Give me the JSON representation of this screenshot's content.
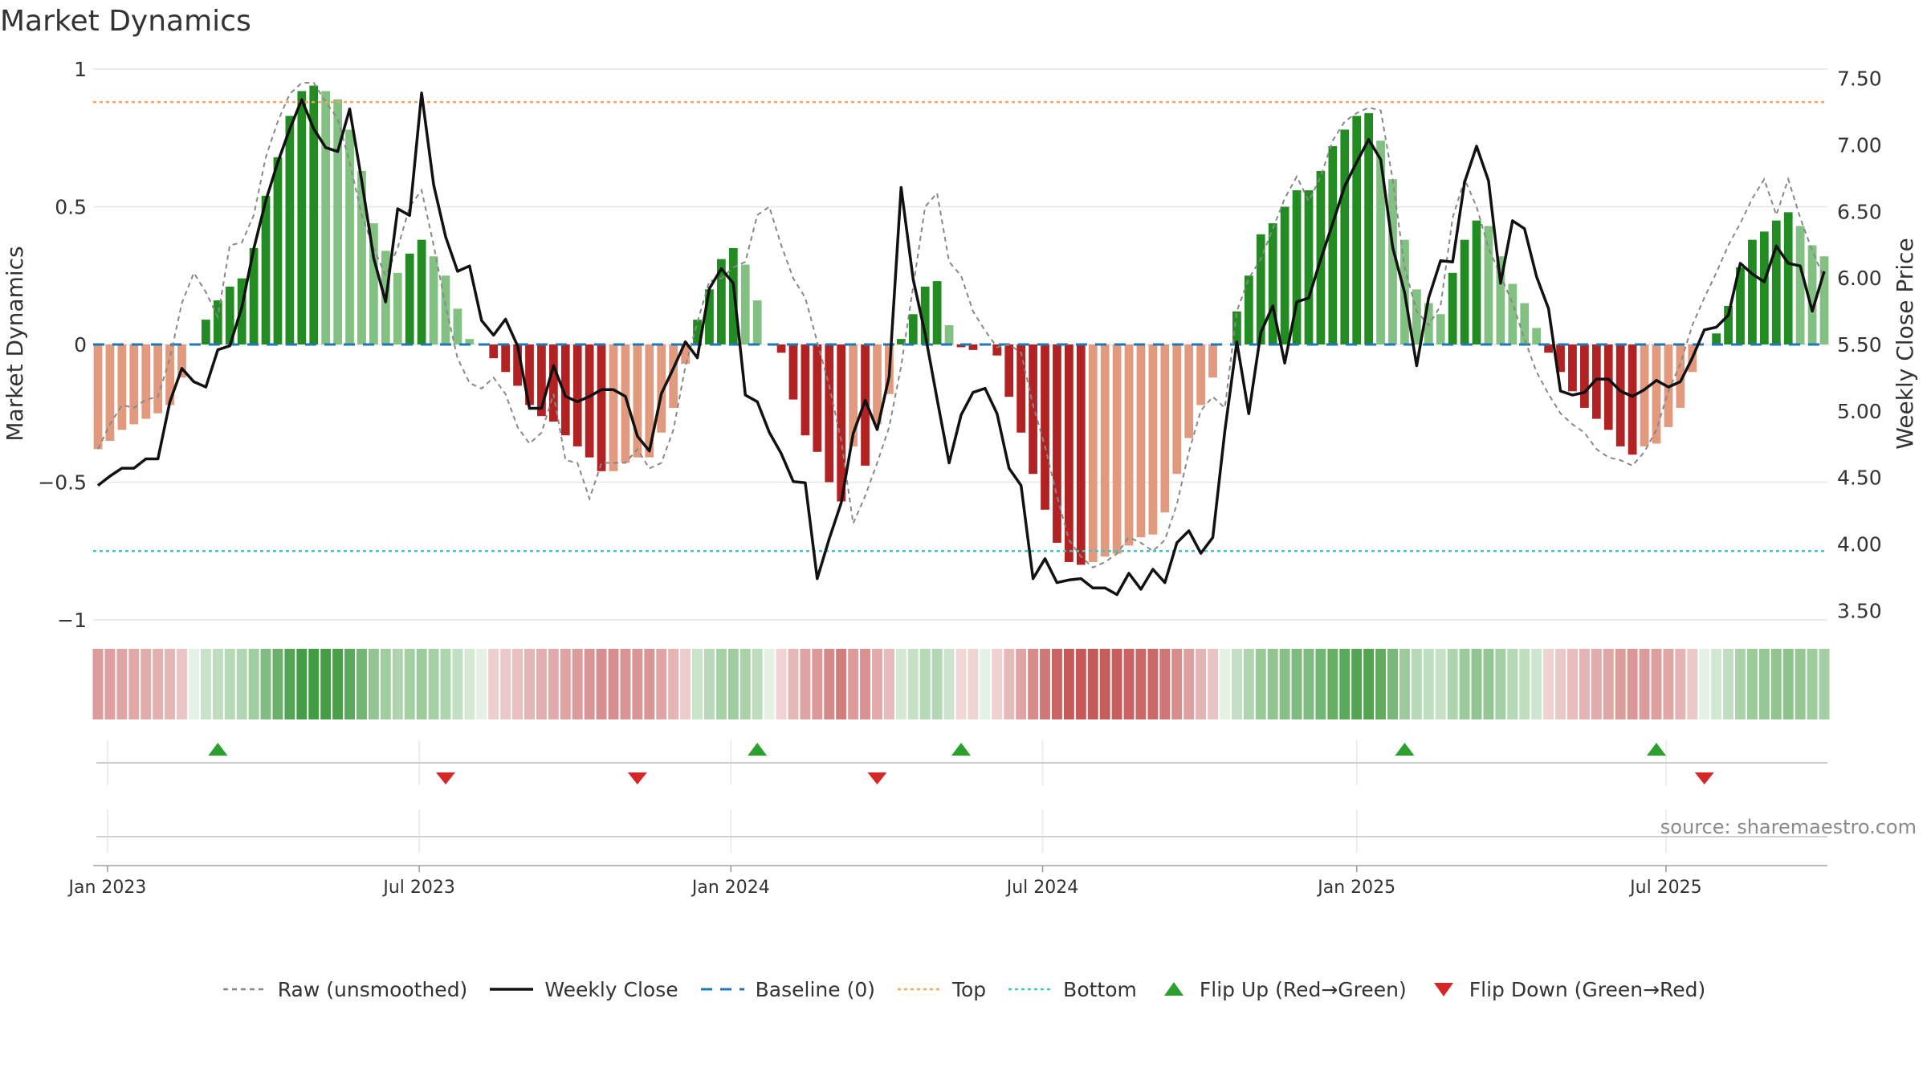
{
  "title": "Market Dynamics",
  "source": "source: sharemaestro.com",
  "chart_data": {
    "type": "bar",
    "y_left_label": "Market Dynamics",
    "y_right_label": "Weekly Close Price",
    "y_left_ticks": [
      "1",
      "0.5",
      "0",
      "−0.5",
      "−1"
    ],
    "y_left_range": [
      -1,
      1
    ],
    "y_right_ticks": [
      "7.50",
      "7.00",
      "6.50",
      "6.00",
      "5.50",
      "5.00",
      "4.50",
      "4.00",
      "3.50"
    ],
    "y_right_range": [
      3.43,
      7.57
    ],
    "x_ticks": [
      "Jan 2023",
      "Jul 2023",
      "Jan 2024",
      "Jul 2024",
      "Jan 2025",
      "Jul 2025"
    ],
    "top_level": 0.88,
    "bottom_level": -0.75,
    "grid": true,
    "dynamics": [
      -0.38,
      -0.35,
      -0.31,
      -0.29,
      -0.27,
      -0.25,
      -0.22,
      -0.12,
      0,
      0.09,
      0.16,
      0.21,
      0.24,
      0.35,
      0.54,
      0.68,
      0.83,
      0.92,
      0.94,
      0.92,
      0.89,
      0.78,
      0.63,
      0.44,
      0.34,
      0.26,
      0.33,
      0.38,
      0.32,
      0.25,
      0.13,
      0.02,
      0,
      -0.05,
      -0.1,
      -0.15,
      -0.22,
      -0.26,
      -0.28,
      -0.33,
      -0.37,
      -0.41,
      -0.46,
      -0.46,
      -0.43,
      -0.41,
      -0.41,
      -0.32,
      -0.23,
      -0.07,
      0.09,
      0.2,
      0.31,
      0.35,
      0.29,
      0.16,
      0,
      -0.03,
      -0.2,
      -0.33,
      -0.39,
      -0.5,
      -0.57,
      -0.37,
      -0.44,
      -0.29,
      -0.18,
      0.02,
      0.11,
      0.21,
      0.23,
      0.07,
      -0.01,
      -0.02,
      0,
      -0.04,
      -0.19,
      -0.32,
      -0.47,
      -0.6,
      -0.72,
      -0.79,
      -0.8,
      -0.79,
      -0.77,
      -0.76,
      -0.73,
      -0.7,
      -0.69,
      -0.61,
      -0.47,
      -0.34,
      -0.22,
      -0.12,
      0,
      0.12,
      0.25,
      0.4,
      0.44,
      0.5,
      0.56,
      0.56,
      0.63,
      0.72,
      0.78,
      0.83,
      0.84,
      0.74,
      0.6,
      0.38,
      0.2,
      0.15,
      0.11,
      0.26,
      0.38,
      0.45,
      0.43,
      0.32,
      0.22,
      0.15,
      0.06,
      -0.03,
      -0.1,
      -0.17,
      -0.23,
      -0.27,
      -0.31,
      -0.37,
      -0.4,
      -0.37,
      -0.36,
      -0.3,
      -0.23,
      -0.1,
      0,
      0.04,
      0.14,
      0.28,
      0.38,
      0.41,
      0.45,
      0.48,
      0.43,
      0.36,
      0.32
    ],
    "raw": [
      -0.38,
      -0.29,
      -0.22,
      -0.23,
      -0.2,
      -0.19,
      -0.05,
      0.15,
      0.26,
      0.19,
      0.1,
      0.36,
      0.37,
      0.47,
      0.68,
      0.81,
      0.91,
      0.95,
      0.95,
      0.88,
      0.82,
      0.66,
      0.47,
      0.35,
      0.25,
      0.35,
      0.5,
      0.56,
      0.36,
      0.14,
      -0.05,
      -0.14,
      -0.16,
      -0.12,
      -0.18,
      -0.3,
      -0.36,
      -0.32,
      -0.18,
      -0.42,
      -0.43,
      -0.56,
      -0.43,
      -0.43,
      -0.43,
      -0.38,
      -0.45,
      -0.43,
      -0.31,
      -0.08,
      0.08,
      0.23,
      0.24,
      0.28,
      0.3,
      0.47,
      0.5,
      0.36,
      0.24,
      0.17,
      0.01,
      -0.15,
      -0.35,
      -0.65,
      -0.55,
      -0.43,
      -0.3,
      -0.08,
      0.21,
      0.5,
      0.55,
      0.3,
      0.25,
      0.12,
      0.05,
      -0.01,
      0,
      -0.03,
      -0.22,
      -0.37,
      -0.55,
      -0.71,
      -0.77,
      -0.81,
      -0.79,
      -0.76,
      -0.7,
      -0.72,
      -0.75,
      -0.71,
      -0.58,
      -0.39,
      -0.24,
      -0.19,
      -0.23,
      0.12,
      0.24,
      0.31,
      0.42,
      0.53,
      0.61,
      0.52,
      0.61,
      0.74,
      0.81,
      0.84,
      0.86,
      0.85,
      0.6,
      0.28,
      0.12,
      0.07,
      0.14,
      0.46,
      0.6,
      0.5,
      0.35,
      0.25,
      0.15,
      0.02,
      -0.1,
      -0.18,
      -0.25,
      -0.29,
      -0.32,
      -0.38,
      -0.41,
      -0.42,
      -0.44,
      -0.39,
      -0.31,
      -0.17,
      -0.07,
      0.07,
      0.17,
      0.26,
      0.36,
      0.44,
      0.53,
      0.6,
      0.47,
      0.6,
      0.46,
      0.34,
      0.24
    ],
    "weekly_close": [
      4.44,
      4.51,
      4.57,
      4.57,
      4.64,
      4.64,
      5.07,
      5.32,
      5.22,
      5.18,
      5.46,
      5.49,
      5.78,
      6.22,
      6.58,
      6.87,
      7.12,
      7.34,
      7.12,
      6.98,
      6.95,
      7.27,
      6.73,
      6.15,
      5.82,
      6.52,
      6.47,
      7.39,
      6.7,
      6.31,
      6.05,
      6.09,
      5.68,
      5.57,
      5.69,
      5.49,
      5.02,
      5.02,
      5.34,
      5.11,
      5.07,
      5.11,
      5.16,
      5.16,
      5.11,
      4.81,
      4.7,
      5.13,
      5.32,
      5.52,
      5.4,
      5.92,
      6.07,
      5.96,
      5.12,
      5.07,
      4.84,
      4.68,
      4.47,
      4.46,
      3.74,
      4.04,
      4.31,
      4.83,
      5.08,
      4.86,
      5.26,
      6.68,
      5.99,
      5.58,
      5.09,
      4.61,
      4.97,
      5.14,
      5.17,
      4.98,
      4.57,
      4.44,
      3.74,
      3.89,
      3.71,
      3.73,
      3.74,
      3.67,
      3.67,
      3.62,
      3.78,
      3.66,
      3.81,
      3.71,
      4.01,
      4.1,
      3.93,
      4.05,
      4.85,
      5.52,
      4.98,
      5.59,
      5.79,
      5.36,
      5.82,
      5.85,
      6.14,
      6.41,
      6.69,
      6.87,
      7.04,
      6.89,
      6.23,
      5.89,
      5.34,
      5.85,
      6.13,
      6.12,
      6.72,
      6.99,
      6.73,
      5.96,
      6.43,
      6.37,
      6.01,
      5.77,
      5.15,
      5.12,
      5.14,
      5.24,
      5.24,
      5.15,
      5.11,
      5.16,
      5.23,
      5.18,
      5.22,
      5.4,
      5.61,
      5.63,
      5.72,
      6.11,
      6.03,
      5.97,
      6.24,
      6.11,
      6.09,
      5.75,
      6.05
    ],
    "series_names": [
      "Raw (unsmoothed)",
      "Weekly Close",
      "Baseline (0)",
      "Top",
      "Bottom",
      "Flip Up (Red→Green)",
      "Flip Down (Green→Red)"
    ],
    "flip_up_weeks": [
      10,
      55,
      72,
      109,
      130
    ],
    "flip_down_weeks": [
      29,
      45,
      65,
      134
    ],
    "colors": {
      "strong_green": "#228b22",
      "light_green": "#82c182",
      "strong_red": "#b22222",
      "light_red": "#e29a7e",
      "raw": "#888888",
      "close": "#111111",
      "baseline": "#1f77b4",
      "top": "#f4a460",
      "bottom": "#40c4c4",
      "flip_up": "#2ca02c",
      "flip_down": "#d62728"
    }
  }
}
